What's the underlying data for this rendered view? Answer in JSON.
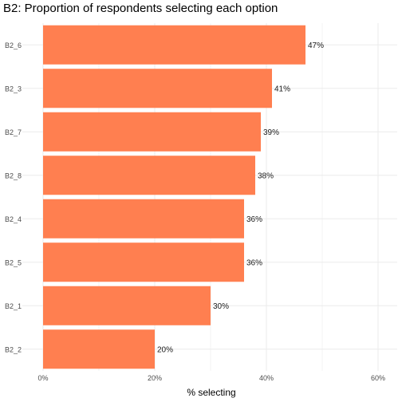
{
  "chart_data": {
    "type": "bar",
    "orientation": "horizontal",
    "title": "B2: Proportion of respondents selecting each option",
    "xlabel": "% selecting",
    "ylabel": "",
    "categories": [
      "B2_6",
      "B2_3",
      "B2_7",
      "B2_8",
      "B2_4",
      "B2_5",
      "B2_1",
      "B2_2"
    ],
    "values": [
      47,
      41,
      39,
      38,
      36,
      36,
      30,
      20
    ],
    "data_labels": [
      "47%",
      "41%",
      "39%",
      "38%",
      "36%",
      "36%",
      "30%",
      "20%"
    ],
    "xlim": [
      0,
      63
    ],
    "x_ticks": [
      0,
      20,
      40,
      60
    ],
    "x_tick_labels": [
      "0%",
      "20%",
      "40%",
      "60%"
    ],
    "bar_color": "#FF7F50",
    "grid": true,
    "gridline_color": "#EBEBEB",
    "legend": "none"
  }
}
